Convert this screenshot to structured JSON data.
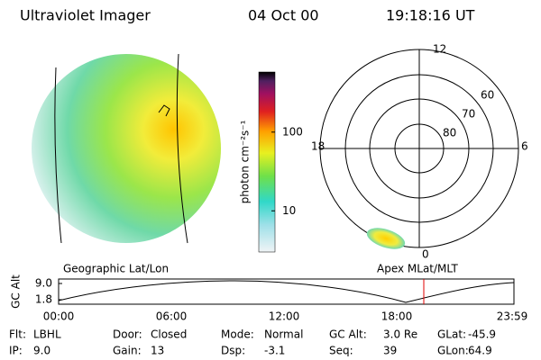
{
  "header": {
    "instrument": "Ultraviolet Imager",
    "date": "04 Oct 00",
    "time": "19:18:16 UT"
  },
  "colorbar": {
    "label": "photon cm⁻²s⁻¹",
    "ticks": [
      10,
      100
    ],
    "range": [
      3,
      580
    ],
    "log": true
  },
  "polar": {
    "mlt_labels": [
      "12",
      "18",
      "6",
      "0"
    ],
    "lat_labels": [
      "60",
      "70",
      "80"
    ]
  },
  "image_labels": {
    "left": "Geographic Lat/Lon",
    "right": "Apex MLat/MLT"
  },
  "altitude": {
    "axis_label": "GC Alt",
    "yticks": [
      {
        "value": 9,
        "label": "9.0"
      },
      {
        "value": 1.8,
        "label": "1.8"
      }
    ],
    "xticks": [
      "00:00",
      "06:00",
      "12:00",
      "18:00",
      "23:59"
    ]
  },
  "footer": {
    "rows": [
      [
        [
          "Flt:",
          "LBHL"
        ],
        [
          "Door:",
          "Closed"
        ],
        [
          "Mode:",
          "Normal"
        ],
        [
          "GC Alt:",
          "3.0 Re"
        ],
        [
          "GLat:",
          "-45.9"
        ]
      ],
      [
        [
          "IP:",
          "9.0"
        ],
        [
          "Gain:",
          "13"
        ],
        [
          "Dsp:",
          "-3.1"
        ],
        [
          "Seq:",
          "39"
        ],
        [
          "GLon:",
          "64.9"
        ]
      ]
    ]
  }
}
